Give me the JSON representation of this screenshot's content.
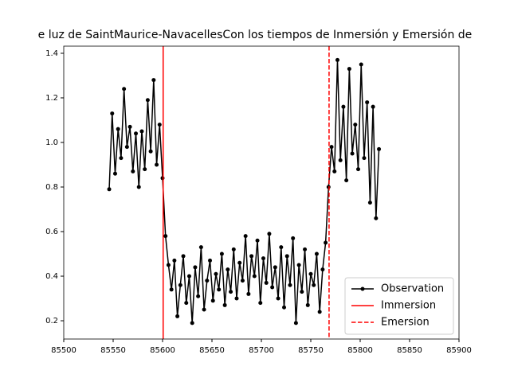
{
  "chart_data": {
    "type": "line",
    "title": "e luz de SaintMaurice-NavacellesCon los tiempos de Inmersión y Emersión de",
    "x": [
      85546,
      85549,
      85552,
      85555,
      85558,
      85561,
      85564,
      85567,
      85570,
      85573,
      85576,
      85579,
      85582,
      85585,
      85588,
      85591,
      85594,
      85597,
      85600,
      85603,
      85606,
      85609,
      85612,
      85615,
      85618,
      85621,
      85624,
      85627,
      85630,
      85633,
      85636,
      85639,
      85642,
      85645,
      85648,
      85651,
      85654,
      85657,
      85660,
      85663,
      85666,
      85669,
      85672,
      85675,
      85678,
      85681,
      85684,
      85687,
      85690,
      85693,
      85696,
      85699,
      85702,
      85705,
      85708,
      85711,
      85714,
      85717,
      85720,
      85723,
      85726,
      85729,
      85732,
      85735,
      85738,
      85741,
      85744,
      85747,
      85750,
      85753,
      85756,
      85759,
      85762,
      85765,
      85768,
      85771,
      85774,
      85777,
      85780,
      85783,
      85786,
      85789,
      85792,
      85795,
      85798,
      85801,
      85804,
      85807,
      85810,
      85813,
      85816,
      85819
    ],
    "series": [
      {
        "name": "Observation",
        "color": "#000000",
        "values": [
          0.79,
          1.13,
          0.86,
          1.06,
          0.93,
          1.24,
          0.98,
          1.07,
          0.87,
          1.04,
          0.8,
          1.05,
          0.88,
          1.19,
          0.96,
          1.28,
          0.9,
          1.08,
          0.84,
          0.58,
          0.45,
          0.34,
          0.47,
          0.22,
          0.36,
          0.49,
          0.28,
          0.4,
          0.19,
          0.44,
          0.31,
          0.53,
          0.25,
          0.38,
          0.47,
          0.29,
          0.41,
          0.34,
          0.5,
          0.27,
          0.43,
          0.33,
          0.52,
          0.3,
          0.46,
          0.38,
          0.58,
          0.32,
          0.49,
          0.4,
          0.56,
          0.28,
          0.48,
          0.37,
          0.59,
          0.35,
          0.44,
          0.3,
          0.53,
          0.26,
          0.49,
          0.36,
          0.57,
          0.19,
          0.45,
          0.33,
          0.52,
          0.27,
          0.41,
          0.36,
          0.5,
          0.24,
          0.43,
          0.55,
          0.8,
          0.98,
          0.87,
          1.37,
          0.92,
          1.16,
          0.83,
          1.33,
          0.95,
          1.08,
          0.88,
          1.35,
          0.93,
          1.18,
          0.73,
          1.16,
          0.66,
          0.97
        ]
      }
    ],
    "vlines": [
      {
        "name": "Immersion",
        "x": 85600.6,
        "color": "#ff0000",
        "dashed": false
      },
      {
        "name": "Emersion",
        "x": 85768.5,
        "color": "#ff0000",
        "dashed": true
      }
    ],
    "xlim": [
      85500,
      85900
    ],
    "xticks": [
      85500,
      85550,
      85600,
      85650,
      85700,
      85750,
      85800,
      85850,
      85900
    ],
    "ylim": [
      0.118,
      1.432
    ],
    "yticks": [
      0.2,
      0.4,
      0.6,
      0.8,
      {
        "value": 1,
        "label": "1.0"
      },
      1.2,
      1.4
    ],
    "legend": "lower right"
  }
}
